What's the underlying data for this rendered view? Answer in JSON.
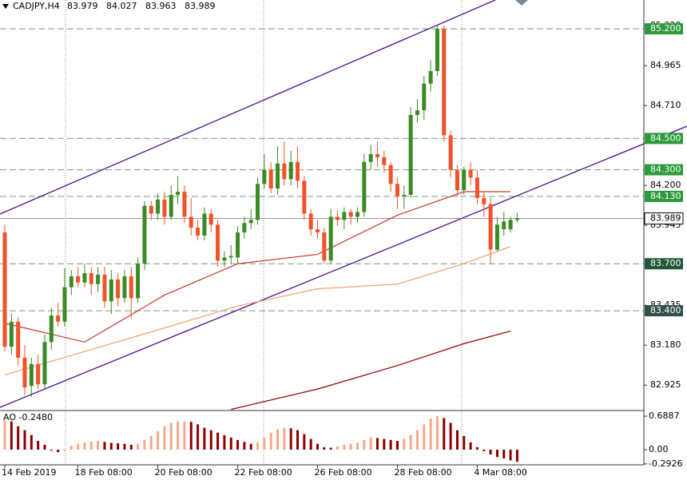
{
  "chart_data": [
    {
      "type": "candlestick",
      "title": "CADJPY,H4",
      "header_values": [
        83.979,
        84.027,
        83.963,
        83.989
      ],
      "bull_color": "#3a8a25",
      "bear_color": "#f0522a",
      "open": [
        83.9,
        83.17,
        83.33,
        83.1,
        82.92,
        83.06,
        82.93,
        83.2,
        83.37,
        83.33,
        83.55,
        83.62,
        83.58,
        83.64,
        83.57,
        83.63,
        83.46,
        83.6,
        83.48,
        83.62,
        83.48,
        83.7,
        84.07,
        84.02,
        84.11,
        84.0,
        84.14,
        84.16,
        84.0,
        83.93,
        83.88,
        84.02,
        83.95,
        83.72,
        83.74,
        83.74,
        83.9,
        83.96,
        83.98,
        84.21,
        84.3,
        84.18,
        84.34,
        84.24,
        84.35,
        84.23,
        84.02,
        83.92,
        83.9,
        83.72,
        84.0,
        83.98,
        84.03,
        84.0,
        84.03,
        84.35,
        84.4,
        84.38,
        84.33,
        84.21,
        84.13,
        84.14,
        84.65,
        84.68,
        84.85,
        84.93,
        85.2,
        84.52,
        84.3,
        84.17,
        84.3,
        84.25,
        84.12,
        84.08,
        83.79,
        83.92,
        83.92,
        83.979
      ],
      "high": [
        83.95,
        83.38,
        83.36,
        83.18,
        83.1,
        83.12,
        83.25,
        83.42,
        83.45,
        83.67,
        83.66,
        83.68,
        83.7,
        83.68,
        83.68,
        83.68,
        83.66,
        83.64,
        83.66,
        83.68,
        83.74,
        84.1,
        84.1,
        84.15,
        84.16,
        84.2,
        84.26,
        84.2,
        84.12,
        83.98,
        84.06,
        84.05,
        83.98,
        83.78,
        83.82,
        83.94,
        84.0,
        84.05,
        84.25,
        84.4,
        84.35,
        84.45,
        84.48,
        84.42,
        84.45,
        84.26,
        84.05,
        83.98,
        83.93,
        84.05,
        84.04,
        84.06,
        84.05,
        84.06,
        84.4,
        84.46,
        84.48,
        84.42,
        84.35,
        84.25,
        84.2,
        84.7,
        84.75,
        84.9,
        85.0,
        85.22,
        85.22,
        84.55,
        84.33,
        84.32,
        84.35,
        84.3,
        84.16,
        84.12,
        84.0,
        84.03,
        84.0,
        84.027
      ],
      "low": [
        83.14,
        83.12,
        83.05,
        82.86,
        82.85,
        82.9,
        82.9,
        83.15,
        83.3,
        83.3,
        83.5,
        83.55,
        83.55,
        83.5,
        83.52,
        83.42,
        83.38,
        83.43,
        83.45,
        83.35,
        83.45,
        83.66,
        83.98,
        83.98,
        83.95,
        83.98,
        84.08,
        83.96,
        83.88,
        83.85,
        83.85,
        83.9,
        83.68,
        83.68,
        83.7,
        83.7,
        83.86,
        83.92,
        83.95,
        84.18,
        84.15,
        84.14,
        84.2,
        84.2,
        84.18,
        83.98,
        83.88,
        83.86,
        83.7,
        83.7,
        83.94,
        83.92,
        83.95,
        83.96,
        84.0,
        84.3,
        84.32,
        84.28,
        84.16,
        84.05,
        84.05,
        84.12,
        84.6,
        84.62,
        84.8,
        84.9,
        84.48,
        84.25,
        84.13,
        84.14,
        84.2,
        84.08,
        84.0,
        83.7,
        83.78,
        83.88,
        83.9,
        83.963
      ],
      "close": [
        83.17,
        83.33,
        83.1,
        82.91,
        83.06,
        82.93,
        83.2,
        83.37,
        83.33,
        83.55,
        83.62,
        83.58,
        83.64,
        83.57,
        83.63,
        83.46,
        83.6,
        83.48,
        83.62,
        83.48,
        83.7,
        84.07,
        84.02,
        84.11,
        84.0,
        84.14,
        84.16,
        84.0,
        83.93,
        83.88,
        84.02,
        83.95,
        83.72,
        83.74,
        83.75,
        83.9,
        83.96,
        83.98,
        84.21,
        84.3,
        84.18,
        84.34,
        84.24,
        84.35,
        84.23,
        84.02,
        83.92,
        83.9,
        83.72,
        84.0,
        83.98,
        84.03,
        84.0,
        84.03,
        84.35,
        84.4,
        84.38,
        84.33,
        84.21,
        84.13,
        84.14,
        84.65,
        84.68,
        84.85,
        84.93,
        85.2,
        84.52,
        84.3,
        84.17,
        84.3,
        84.25,
        84.12,
        84.08,
        83.79,
        83.95,
        83.97,
        83.98,
        83.989
      ],
      "overlays": [
        {
          "color": "#c0392b",
          "x": [
            0,
            12,
            24,
            35,
            47,
            59,
            69,
            76
          ],
          "values": [
            83.32,
            83.2,
            83.5,
            83.7,
            83.76,
            84.01,
            84.16,
            84.16
          ]
        },
        {
          "color": "#f4a070",
          "x": [
            0,
            12,
            24,
            35,
            47,
            59,
            69,
            76
          ],
          "values": [
            82.99,
            83.14,
            83.29,
            83.43,
            83.54,
            83.57,
            83.7,
            83.81
          ]
        },
        {
          "color": "#8b0000",
          "x": [
            34,
            47,
            59,
            69,
            76
          ],
          "values": [
            82.77,
            82.9,
            83.05,
            83.19,
            83.27
          ]
        }
      ],
      "levels": [
        {
          "value": 85.2,
          "label": "85.200",
          "color": "#2e9a3c"
        },
        {
          "value": 84.5,
          "label": "84.500",
          "color": "#2e9a3c"
        },
        {
          "value": 84.3,
          "label": "84.300",
          "color": "#2e9a3c"
        },
        {
          "value": 84.13,
          "label": "84.130",
          "color": "#2e9a3c"
        },
        {
          "value": 83.7,
          "label": "83.700",
          "color": "#24573a"
        },
        {
          "value": 83.4,
          "label": "83.400",
          "color": "#2f4f4a"
        }
      ],
      "last_price": 83.989,
      "ylim": [
        82.768,
        85.384
      ],
      "yticks": [
        {
          "value": 85.22,
          "label": "85.220"
        },
        84.965,
        {
          "value": 84.71,
          "label": "84.710"
        },
        {
          "value": 84.2,
          "label": "84.200"
        },
        83.945,
        83.435,
        {
          "value": 83.18,
          "label": "83.180"
        },
        82.925
      ],
      "xticks": [
        {
          "value": 0,
          "label": "14 Feb 2019"
        },
        {
          "value": 11,
          "label": "18 Feb 08:00"
        },
        {
          "value": 23,
          "label": "20 Feb 08:00"
        },
        {
          "value": 35,
          "label": "22 Feb 08:00"
        },
        {
          "value": 47,
          "label": "26 Feb 08:00"
        },
        {
          "value": 59,
          "label": "28 Feb 08:00"
        },
        {
          "value": 71,
          "label": "4 Mar 08:00"
        }
      ]
    },
    {
      "type": "bar",
      "title": "AO -0.2480",
      "up_color": "#f4a88a",
      "down_color": "#8b0000",
      "values": [
        0.6,
        0.58,
        0.48,
        0.4,
        0.3,
        0.18,
        0.1,
        -0.02,
        -0.05,
        -0.03,
        0.08,
        0.12,
        0.15,
        0.17,
        0.18,
        0.16,
        0.14,
        0.13,
        0.12,
        0.1,
        0.12,
        0.2,
        0.28,
        0.38,
        0.48,
        0.55,
        0.58,
        0.58,
        0.57,
        0.52,
        0.45,
        0.4,
        0.35,
        0.3,
        0.25,
        0.2,
        0.16,
        0.12,
        0.15,
        0.25,
        0.35,
        0.42,
        0.45,
        0.44,
        0.4,
        0.32,
        0.22,
        0.12,
        0.05,
        0.04,
        0.07,
        0.1,
        0.12,
        0.14,
        0.2,
        0.25,
        0.24,
        0.22,
        0.2,
        0.18,
        0.22,
        0.3,
        0.4,
        0.52,
        0.64,
        0.69,
        0.65,
        0.55,
        0.4,
        0.28,
        0.15,
        0.05,
        -0.03,
        -0.1,
        -0.15,
        -0.18,
        -0.22,
        -0.248
      ],
      "ylim": [
        -0.311,
        0.787
      ],
      "yticks": [
        0.6887,
        {
          "value": 0,
          "label": "0.00"
        },
        -0.2926
      ]
    }
  ]
}
